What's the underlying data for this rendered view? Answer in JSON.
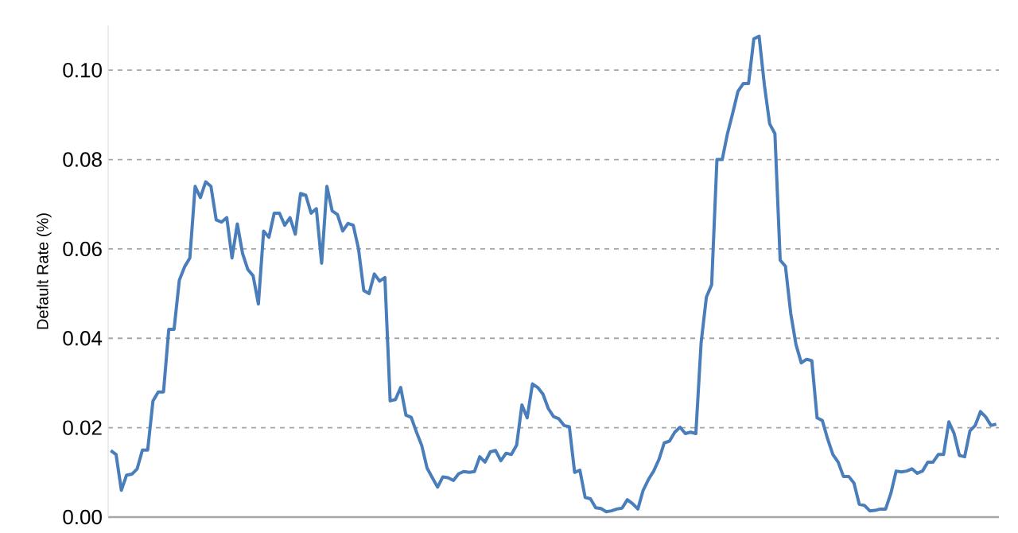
{
  "chart_data": {
    "type": "line",
    "ylabel": "Default Rate (%)",
    "categories": [
      null,
      null,
      null,
      null,
      null,
      null,
      null,
      null,
      null,
      null,
      null,
      null,
      null,
      null,
      null,
      null,
      null,
      null,
      null,
      null,
      null,
      null,
      null,
      null,
      null,
      null,
      null,
      null,
      null,
      null,
      null,
      null,
      null,
      null,
      null,
      null,
      null,
      null,
      null,
      null,
      null,
      null,
      null,
      null,
      null,
      null,
      null,
      null,
      null,
      null,
      null,
      null,
      null,
      null,
      null,
      null,
      null,
      null,
      null,
      null,
      null,
      null,
      null,
      null,
      null,
      null,
      null,
      null,
      null,
      null,
      null,
      null,
      null,
      null,
      null,
      null,
      null,
      null,
      null,
      null,
      null,
      null,
      null,
      null,
      null,
      null,
      null,
      null,
      null,
      null,
      null,
      null,
      null,
      null,
      null,
      null,
      null,
      null,
      null,
      null,
      null,
      null,
      null,
      null,
      null,
      null,
      null,
      null,
      null,
      null,
      null,
      null,
      null,
      null,
      null,
      null,
      null,
      null,
      null,
      null,
      null,
      null,
      null,
      null,
      null,
      null,
      null,
      null,
      null,
      null,
      null,
      null,
      null,
      null,
      null,
      null,
      null,
      null,
      null,
      null,
      null,
      null,
      null,
      null,
      null,
      null,
      null,
      null,
      null,
      null,
      null,
      null,
      null,
      null,
      null,
      null,
      null,
      null,
      null,
      null,
      null,
      null,
      null,
      null,
      null,
      null,
      null,
      null,
      null
    ],
    "series": [
      {
        "color": "#4a7ebb",
        "values": [
          0.0149,
          0.014,
          0.006,
          0.0094,
          0.0096,
          0.0108,
          0.015,
          0.015,
          0.026,
          0.028,
          0.028,
          0.042,
          0.042,
          0.053,
          0.056,
          0.058,
          0.074,
          0.0715,
          0.075,
          0.074,
          0.0665,
          0.066,
          0.067,
          0.058,
          0.0656,
          0.059,
          0.0554,
          0.054,
          0.0477,
          0.064,
          0.0626,
          0.068,
          0.068,
          0.0653,
          0.067,
          0.0633,
          0.0724,
          0.072,
          0.068,
          0.069,
          0.0568,
          0.074,
          0.0685,
          0.0677,
          0.064,
          0.0657,
          0.0653,
          0.06,
          0.0507,
          0.05,
          0.0544,
          0.0528,
          0.0536,
          0.026,
          0.0263,
          0.029,
          0.0228,
          0.0223,
          0.019,
          0.016,
          0.011,
          0.0088,
          0.0067,
          0.009,
          0.0088,
          0.0082,
          0.0097,
          0.0102,
          0.01,
          0.0102,
          0.0135,
          0.0123,
          0.0146,
          0.0149,
          0.0126,
          0.0143,
          0.014,
          0.0161,
          0.0251,
          0.0222,
          0.0298,
          0.029,
          0.0275,
          0.0243,
          0.0225,
          0.022,
          0.0205,
          0.0202,
          0.01,
          0.0105,
          0.0044,
          0.0041,
          0.0021,
          0.0019,
          0.0012,
          0.0014,
          0.0018,
          0.002,
          0.0039,
          0.003,
          0.0018,
          0.006,
          0.0084,
          0.0103,
          0.0129,
          0.0166,
          0.017,
          0.019,
          0.0201,
          0.0187,
          0.019,
          0.0187,
          0.039,
          0.0492,
          0.052,
          0.08,
          0.08,
          0.0858,
          0.0904,
          0.0953,
          0.097,
          0.097,
          0.107,
          0.1076,
          0.0967,
          0.088,
          0.0858,
          0.0575,
          0.0561,
          0.0456,
          0.0386,
          0.0345,
          0.0353,
          0.035,
          0.0222,
          0.0216,
          0.0175,
          0.014,
          0.0123,
          0.0091,
          0.0091,
          0.0076,
          0.0029,
          0.0026,
          0.0014,
          0.0015,
          0.0018,
          0.0018,
          0.0053,
          0.0103,
          0.0101,
          0.0103,
          0.0108,
          0.0098,
          0.0103,
          0.0123,
          0.0123,
          0.014,
          0.014,
          0.0213,
          0.0187,
          0.0138,
          0.0135,
          0.0193,
          0.0205,
          0.0236,
          0.0224,
          0.0205,
          0.0208
        ]
      }
    ],
    "yticks": [
      {
        "value": 0,
        "label": "0.00"
      },
      {
        "value": 0.02,
        "label": "0.02"
      },
      {
        "value": 0.04,
        "label": "0.04"
      },
      {
        "value": 0.06,
        "label": "0.06"
      },
      {
        "value": 0.08,
        "label": "0.08"
      },
      {
        "value": 0.1,
        "label": "0.10"
      }
    ],
    "ylim": [
      0,
      0.11
    ],
    "grid": "y",
    "tick_labels": "y",
    "marker": "none",
    "line_style": "solid"
  }
}
